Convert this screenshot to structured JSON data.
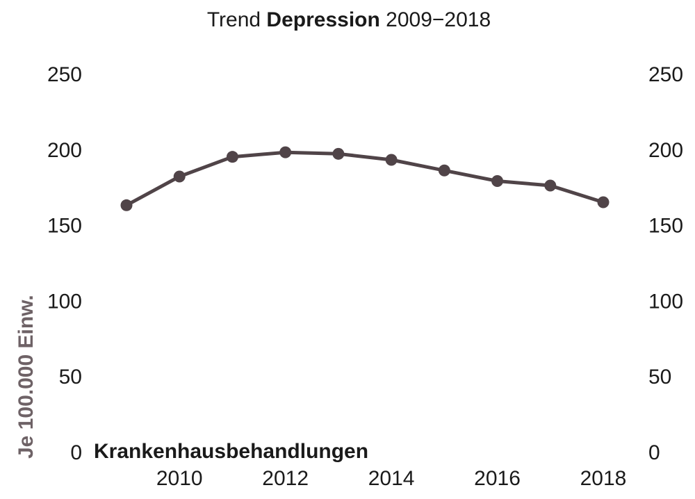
{
  "chart_data": {
    "type": "line",
    "title": {
      "prefix": "Trend ",
      "emphasis": "Depression",
      "suffix": " 2009−2018"
    },
    "ylabel": "Je 100.000 Einw.",
    "annotation": "Krankenhausbehandlungen",
    "x": [
      2009,
      2010,
      2011,
      2012,
      2013,
      2014,
      2015,
      2016,
      2017,
      2018
    ],
    "y": [
      163,
      182,
      195,
      198,
      197,
      193,
      186,
      179,
      176,
      165
    ],
    "xticks": [
      "2010",
      "2012",
      "2014",
      "2016",
      "2018"
    ],
    "yticks": [
      "0",
      "50",
      "100",
      "150",
      "200",
      "250"
    ],
    "ylim": [
      0,
      250
    ],
    "xlim": [
      2008.5,
      2018.5
    ],
    "secondary_y_axis": true,
    "grid": false,
    "colors": {
      "line": "#504448",
      "ylabel": "#6e6266",
      "text": "#1a1a1a"
    }
  }
}
